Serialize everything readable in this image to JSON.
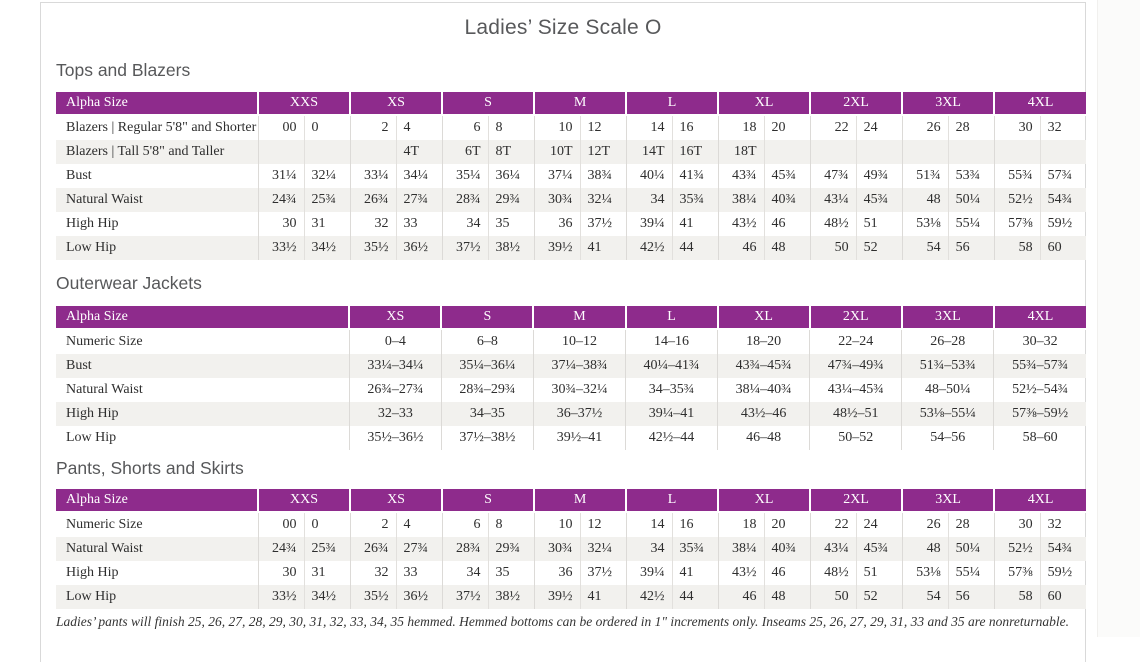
{
  "page_title": "Ladies’ Size Scale O",
  "colors": {
    "header_purple": "#8e2b8c",
    "row_stripe": "#f2f1ee",
    "page_border": "#d9d9d9",
    "heading_gray": "#57585a"
  },
  "sections": [
    {
      "heading": "Tops and Blazers",
      "table": {
        "corner_label": "Alpha Size",
        "column_type": "paired",
        "size_groups": [
          "XXS",
          "XS",
          "S",
          "M",
          "L",
          "XL",
          "2XL",
          "3XL",
          "4XL"
        ],
        "rows": [
          {
            "label": "Blazers | Regular 5'8\" and Shorter",
            "values": [
              [
                "00",
                "0"
              ],
              [
                "2",
                "4"
              ],
              [
                "6",
                "8"
              ],
              [
                "10",
                "12"
              ],
              [
                "14",
                "16"
              ],
              [
                "18",
                "20"
              ],
              [
                "22",
                "24"
              ],
              [
                "26",
                "28"
              ],
              [
                "30",
                "32"
              ]
            ]
          },
          {
            "label": "Blazers | Tall 5'8\" and Taller",
            "values": [
              [
                "",
                ""
              ],
              [
                "",
                "4T"
              ],
              [
                "6T",
                "8T"
              ],
              [
                "10T",
                "12T"
              ],
              [
                "14T",
                "16T"
              ],
              [
                "18T",
                ""
              ],
              [
                "",
                ""
              ],
              [
                "",
                ""
              ],
              [
                "",
                ""
              ]
            ]
          },
          {
            "label": "Bust",
            "values": [
              [
                "31¼",
                "32¼"
              ],
              [
                "33¼",
                "34¼"
              ],
              [
                "35¼",
                "36¼"
              ],
              [
                "37¼",
                "38¾"
              ],
              [
                "40¼",
                "41¾"
              ],
              [
                "43¾",
                "45¾"
              ],
              [
                "47¾",
                "49¾"
              ],
              [
                "51¾",
                "53¾"
              ],
              [
                "55¾",
                "57¾"
              ]
            ]
          },
          {
            "label": "Natural Waist",
            "values": [
              [
                "24¾",
                "25¾"
              ],
              [
                "26¾",
                "27¾"
              ],
              [
                "28¾",
                "29¾"
              ],
              [
                "30¾",
                "32¼"
              ],
              [
                "34",
                "35¾"
              ],
              [
                "38¼",
                "40¾"
              ],
              [
                "43¼",
                "45¾"
              ],
              [
                "48",
                "50¼"
              ],
              [
                "52½",
                "54¾"
              ]
            ]
          },
          {
            "label": "High Hip",
            "values": [
              [
                "30",
                "31"
              ],
              [
                "32",
                "33"
              ],
              [
                "34",
                "35"
              ],
              [
                "36",
                "37½"
              ],
              [
                "39¼",
                "41"
              ],
              [
                "43½",
                "46"
              ],
              [
                "48½",
                "51"
              ],
              [
                "53⅛",
                "55¼"
              ],
              [
                "57⅜",
                "59½"
              ]
            ]
          },
          {
            "label": "Low Hip",
            "values": [
              [
                "33½",
                "34½"
              ],
              [
                "35½",
                "36½"
              ],
              [
                "37½",
                "38½"
              ],
              [
                "39½",
                "41"
              ],
              [
                "42½",
                "44"
              ],
              [
                "46",
                "48"
              ],
              [
                "50",
                "52"
              ],
              [
                "54",
                "56"
              ],
              [
                "58",
                "60"
              ]
            ]
          }
        ]
      }
    },
    {
      "heading": "Outerwear Jackets",
      "table": {
        "corner_label": "Alpha Size",
        "column_type": "single",
        "size_groups": [
          "XS",
          "S",
          "M",
          "L",
          "XL",
          "2XL",
          "3XL",
          "4XL"
        ],
        "rows": [
          {
            "label": "Numeric Size",
            "values": [
              "0–4",
              "6–8",
              "10–12",
              "14–16",
              "18–20",
              "22–24",
              "26–28",
              "30–32"
            ]
          },
          {
            "label": "Bust",
            "values": [
              "33¼–34¼",
              "35¼–36¼",
              "37¼–38¾",
              "40¼–41¾",
              "43¾–45¾",
              "47¾–49¾",
              "51¾–53¾",
              "55¾–57¾"
            ]
          },
          {
            "label": "Natural Waist",
            "values": [
              "26¾–27¾",
              "28¾–29¾",
              "30¾–32¼",
              "34–35¾",
              "38¼–40¾",
              "43¼–45¾",
              "48–50¼",
              "52½–54¾"
            ]
          },
          {
            "label": "High Hip",
            "values": [
              "32–33",
              "34–35",
              "36–37½",
              "39¼–41",
              "43½–46",
              "48½–51",
              "53⅛–55¼",
              "57⅜–59½"
            ]
          },
          {
            "label": "Low Hip",
            "values": [
              "35½–36½",
              "37½–38½",
              "39½–41",
              "42½–44",
              "46–48",
              "50–52",
              "54–56",
              "58–60"
            ]
          }
        ]
      }
    },
    {
      "heading": "Pants, Shorts and Skirts",
      "table": {
        "corner_label": "Alpha Size",
        "column_type": "paired",
        "size_groups": [
          "XXS",
          "XS",
          "S",
          "M",
          "L",
          "XL",
          "2XL",
          "3XL",
          "4XL"
        ],
        "rows": [
          {
            "label": "Numeric Size",
            "values": [
              [
                "00",
                "0"
              ],
              [
                "2",
                "4"
              ],
              [
                "6",
                "8"
              ],
              [
                "10",
                "12"
              ],
              [
                "14",
                "16"
              ],
              [
                "18",
                "20"
              ],
              [
                "22",
                "24"
              ],
              [
                "26",
                "28"
              ],
              [
                "30",
                "32"
              ]
            ]
          },
          {
            "label": "Natural Waist",
            "values": [
              [
                "24¾",
                "25¾"
              ],
              [
                "26¾",
                "27¾"
              ],
              [
                "28¾",
                "29¾"
              ],
              [
                "30¾",
                "32¼"
              ],
              [
                "34",
                "35¾"
              ],
              [
                "38¼",
                "40¾"
              ],
              [
                "43¼",
                "45¾"
              ],
              [
                "48",
                "50¼"
              ],
              [
                "52½",
                "54¾"
              ]
            ]
          },
          {
            "label": "High Hip",
            "values": [
              [
                "30",
                "31"
              ],
              [
                "32",
                "33"
              ],
              [
                "34",
                "35"
              ],
              [
                "36",
                "37½"
              ],
              [
                "39¼",
                "41"
              ],
              [
                "43½",
                "46"
              ],
              [
                "48½",
                "51"
              ],
              [
                "53⅛",
                "55¼"
              ],
              [
                "57⅜",
                "59½"
              ]
            ]
          },
          {
            "label": "Low Hip",
            "values": [
              [
                "33½",
                "34½"
              ],
              [
                "35½",
                "36½"
              ],
              [
                "37½",
                "38½"
              ],
              [
                "39½",
                "41"
              ],
              [
                "42½",
                "44"
              ],
              [
                "46",
                "48"
              ],
              [
                "50",
                "52"
              ],
              [
                "54",
                "56"
              ],
              [
                "58",
                "60"
              ]
            ]
          }
        ]
      }
    }
  ],
  "footnote": "Ladies’ pants will finish 25, 26, 27, 28, 29, 30, 31, 32, 33, 34, 35 hemmed. Hemmed bottoms can be ordered in 1\" increments only. Inseams 25, 26, 27, 29, 31, 33 and 35 are nonreturnable."
}
